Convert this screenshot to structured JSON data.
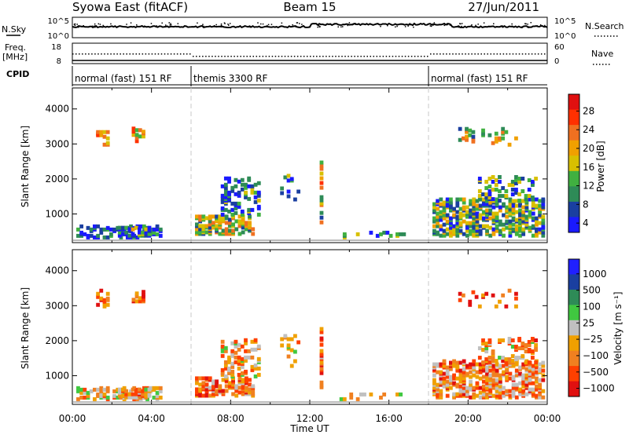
{
  "title": {
    "station": "Syowa East (fitACF)",
    "beam": "Beam 15",
    "date": "27/Jun/2011"
  },
  "top_panels": {
    "nsky_label": "N.Sky",
    "nsky_ticks": [
      "10^5",
      "10^0"
    ],
    "nsearch_label": "N.Search",
    "nsearch_ticks": [
      "10^5",
      "10^0"
    ],
    "freq_label_line1": "Freq.",
    "freq_label_line2": "[MHz]",
    "freq_ticks": [
      "18",
      "8"
    ],
    "nave_label": "Nave",
    "nave_ticks": [
      "60",
      "0"
    ],
    "cpid_label": "CPID"
  },
  "cpid_segments": [
    {
      "label": "normal (fast) 151 RF",
      "start_hour": 0,
      "end_hour": 6
    },
    {
      "label": "themis 3300 RF",
      "start_hour": 6,
      "end_hour": 18
    },
    {
      "label": "normal (fast) 151 RF",
      "start_hour": 18,
      "end_hour": 24
    }
  ],
  "colors": {
    "scale": [
      "#2020ff",
      "#1a3fa0",
      "#2e8b57",
      "#40c840",
      "#c0c0c0",
      "#e8c000",
      "#f08020",
      "#ff4000",
      "#e01010"
    ],
    "power_scale": [
      "#1a1aff",
      "#1a3fa0",
      "#2e8b57",
      "#40b040",
      "#d8c000",
      "#f0a000",
      "#f07020",
      "#ff3000",
      "#e01010"
    ],
    "velocity_scale": [
      "#e01010",
      "#ff4000",
      "#f08020",
      "#f0a000",
      "#c0c0c0",
      "#40c840",
      "#2e8b57",
      "#1a3fa0",
      "#2020ff"
    ],
    "ground_scatter": "#808080"
  },
  "chart_data": [
    {
      "type": "heatmap",
      "name": "power",
      "ylabel": "Slant Range [km]",
      "yticks": [
        "4000",
        "3000",
        "2000",
        "1000"
      ],
      "ylim": [
        180,
        4600
      ],
      "xlim": [
        0,
        24
      ],
      "colorbar_label": "Power [dB]",
      "colorbar_ticks": [
        "28",
        "24",
        "20",
        "16",
        "12",
        "8",
        "4"
      ],
      "colorbar_range": [
        0,
        30
      ]
    },
    {
      "type": "heatmap",
      "name": "velocity",
      "ylabel": "Slant Range [km]",
      "yticks": [
        "4000",
        "3000",
        "2000",
        "1000"
      ],
      "ylim": [
        180,
        4600
      ],
      "xlim": [
        0,
        24
      ],
      "xlabel": "Time UT",
      "xticks": [
        "00:00",
        "04:00",
        "08:00",
        "12:00",
        "16:00",
        "20:00",
        "00:00"
      ],
      "colorbar_label": "Velocity [m s⁻¹]",
      "colorbar_ticks": [
        "1000",
        "500",
        "100",
        "25",
        "−25",
        "−100",
        "−500",
        "−1000"
      ],
      "colorbar_range": [
        -1000,
        1000
      ]
    }
  ]
}
